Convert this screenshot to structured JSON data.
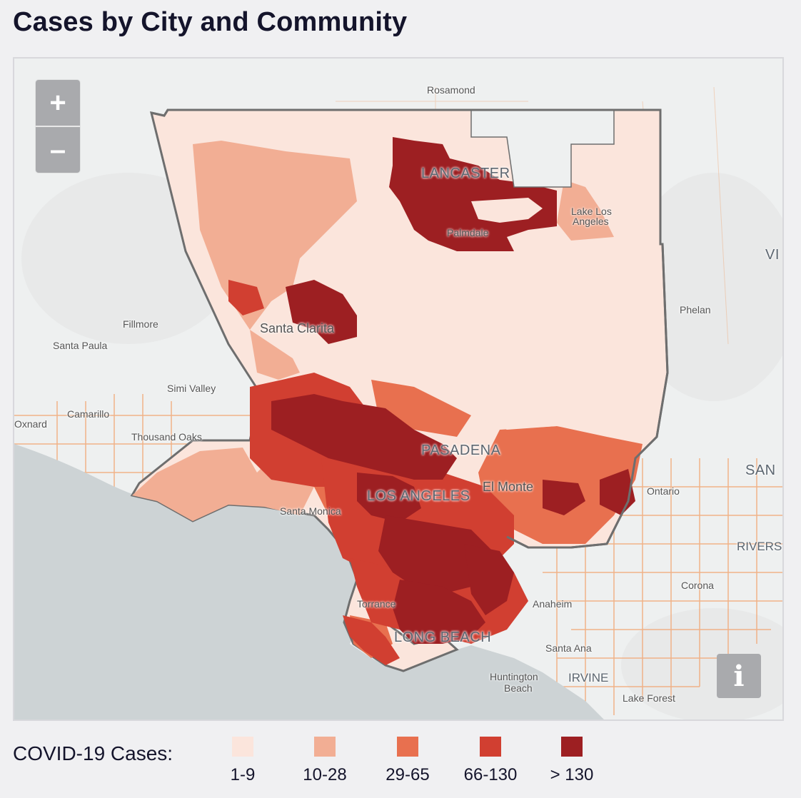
{
  "title": "Cases by City and Community",
  "controls": {
    "zoom_in": "+",
    "zoom_out": "–",
    "info": "i"
  },
  "map": {
    "place_labels": {
      "rosamond": "Rosamond",
      "lancaster": "LANCASTER",
      "lake_los_angeles_1": "Lake Los",
      "lake_los_angeles_2": "Angeles",
      "palmdale": "Palmdale",
      "vi": "VI",
      "phelan": "Phelan",
      "fillmore": "Fillmore",
      "santa_paula": "Santa Paula",
      "santa_clarita": "Santa Clarita",
      "simi_valley": "Simi Valley",
      "camarillo": "Camarillo",
      "oxnard": "Oxnard",
      "thousand_oaks": "Thousand Oaks",
      "pasadena": "PASADENA",
      "san": "SAN",
      "ontario": "Ontario",
      "el_monte": "El Monte",
      "los_angeles": "LOS ANGELES",
      "santa_monica": "Santa Monica",
      "rivers": "RIVERS",
      "corona": "Corona",
      "torrance": "Torrance",
      "anaheim": "Anaheim",
      "long_beach": "LONG BEACH",
      "santa_ana": "Santa Ana",
      "huntington_1": "Huntington",
      "huntington_2": "Beach",
      "irvine": "IRVINE",
      "lake_forest": "Lake Forest"
    }
  },
  "legend": {
    "title": "COVID-19 Cases:",
    "items": [
      {
        "label": "1-9",
        "color": "#fbe5dc"
      },
      {
        "label": "10-28",
        "color": "#f2ae94"
      },
      {
        "label": "29-65",
        "color": "#e8704f"
      },
      {
        "label": "66-130",
        "color": "#d13f31"
      },
      {
        "label": "> 130",
        "color": "#9d1f22"
      }
    ]
  },
  "colors": {
    "water": "#cdd3d5",
    "land": "#eef0f0",
    "roads": "#f2a36e",
    "county_border": "#6e6e6e"
  }
}
